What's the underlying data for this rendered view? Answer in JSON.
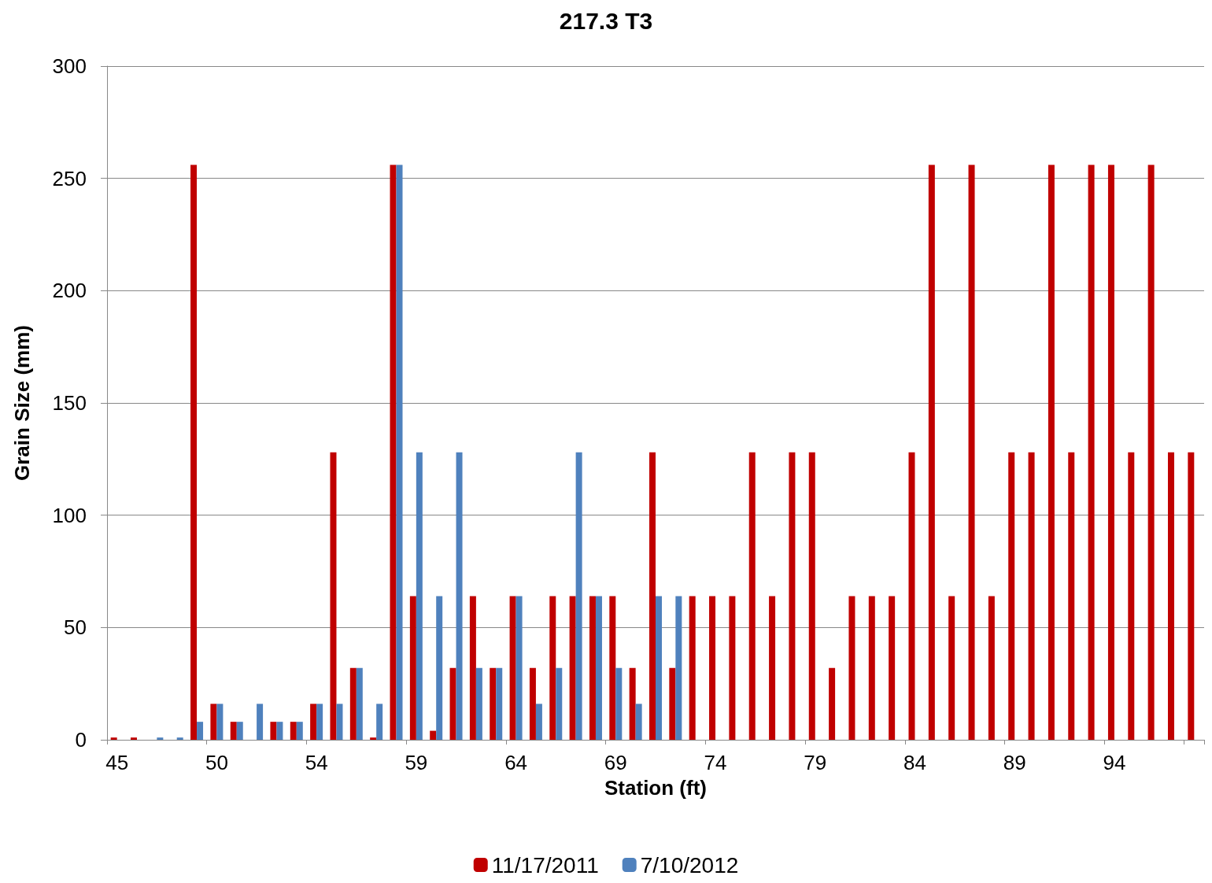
{
  "chart_data": {
    "type": "bar",
    "title": "217.3 T3",
    "xlabel": "Station (ft)",
    "ylabel": "Grain Size (mm)",
    "categories": [
      "45",
      null,
      null,
      null,
      null,
      "50",
      null,
      null,
      null,
      null,
      "54",
      null,
      null,
      null,
      null,
      "59",
      null,
      null,
      null,
      null,
      "64",
      null,
      null,
      null,
      null,
      "69",
      null,
      null,
      null,
      null,
      "74",
      null,
      null,
      null,
      null,
      "79",
      null,
      null,
      null,
      null,
      "84",
      null,
      null,
      null,
      null,
      "89",
      null,
      null,
      null,
      null,
      "94",
      null,
      null,
      null,
      null
    ],
    "series": [
      {
        "name": "11/17/2011",
        "color": "#c00000",
        "values": [
          1,
          1,
          null,
          null,
          256,
          16,
          8,
          null,
          8,
          8,
          16,
          128,
          32,
          1,
          256,
          64,
          4,
          32,
          64,
          32,
          64,
          32,
          64,
          64,
          64,
          64,
          32,
          128,
          32,
          64,
          64,
          64,
          128,
          64,
          128,
          128,
          32,
          64,
          64,
          64,
          128,
          256,
          64,
          256,
          64,
          128,
          128,
          256,
          128,
          256,
          256,
          128,
          256,
          128,
          128
        ]
      },
      {
        "name": "7/10/2012",
        "color": "#4f81bd",
        "values": [
          null,
          null,
          1,
          1,
          8,
          16,
          8,
          16,
          8,
          8,
          16,
          16,
          32,
          16,
          256,
          128,
          64,
          128,
          32,
          32,
          64,
          16,
          32,
          128,
          64,
          32,
          16,
          64,
          64,
          null,
          null,
          null,
          null,
          null,
          null,
          null,
          null,
          null,
          null,
          null,
          null,
          null,
          null,
          null,
          null,
          null,
          null,
          null,
          null,
          null,
          null,
          null,
          null,
          null,
          null
        ]
      }
    ],
    "ylim": [
      0,
      300
    ],
    "yticks": [
      0,
      50,
      100,
      150,
      200,
      250,
      300
    ],
    "grid": "y",
    "legend": "bottom"
  }
}
